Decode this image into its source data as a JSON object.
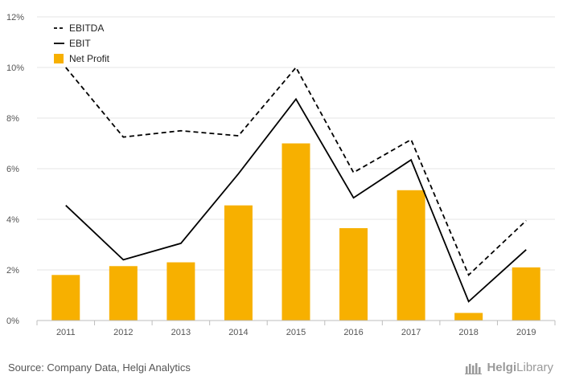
{
  "chart_data": {
    "type": "bar",
    "categories": [
      "2011",
      "2012",
      "2013",
      "2014",
      "2015",
      "2016",
      "2017",
      "2018",
      "2019"
    ],
    "series": [
      {
        "name": "EBITDA",
        "kind": "line",
        "style": "dashed",
        "color": "#000000",
        "values": [
          10.0,
          7.25,
          7.5,
          7.3,
          10.0,
          5.85,
          7.15,
          1.8,
          3.95
        ]
      },
      {
        "name": "EBIT",
        "kind": "line",
        "style": "solid",
        "color": "#000000",
        "values": [
          4.55,
          2.4,
          3.05,
          5.8,
          8.75,
          4.85,
          6.35,
          0.75,
          2.8
        ]
      },
      {
        "name": "Net Profit",
        "kind": "bar",
        "color": "#F7B000",
        "values": [
          1.8,
          2.15,
          2.3,
          4.55,
          7.0,
          3.65,
          5.15,
          0.3,
          2.1
        ]
      }
    ],
    "yticks": [
      "0%",
      "2%",
      "4%",
      "6%",
      "8%",
      "10%",
      "12%"
    ],
    "ylim": [
      0,
      12
    ],
    "grid": true,
    "legend": "top-left"
  },
  "footer": {
    "source": "Source: Company Data, Helgi Analytics",
    "logo_part1": "Helgi",
    "logo_part2": "Library"
  }
}
